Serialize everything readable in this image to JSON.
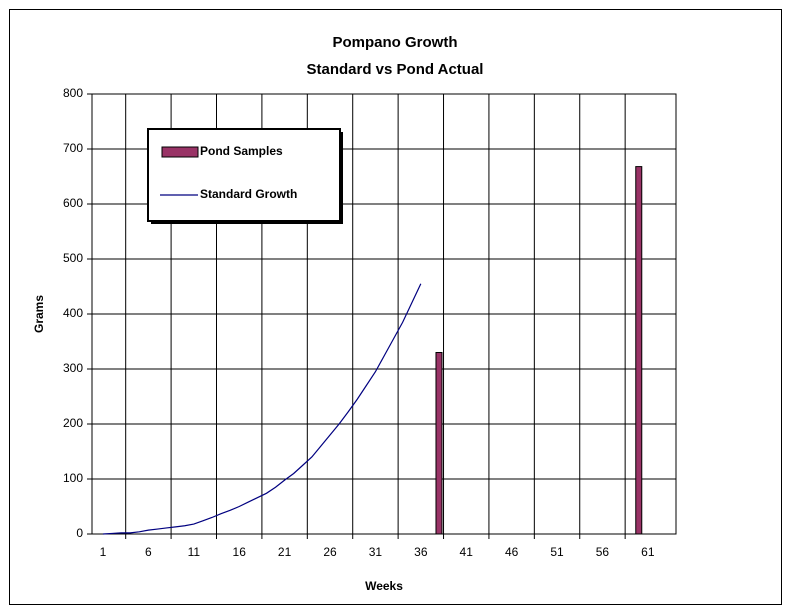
{
  "chart_data": {
    "type": "combo",
    "title": "Pompano Growth",
    "subtitle": "Standard vs Pond Actual",
    "x_label": "Weeks",
    "y_label": "Grams",
    "series": [
      {
        "name": "Pond Samples",
        "type": "bar",
        "color": "#993366",
        "x": [
          38,
          60
        ],
        "values": [
          330,
          668
        ]
      },
      {
        "name": "Standard Growth",
        "type": "line",
        "color": "#000080",
        "x": [
          1,
          2,
          3,
          4,
          5,
          6,
          7,
          8,
          9,
          10,
          11,
          12,
          13,
          14,
          15,
          16,
          17,
          18,
          19,
          20,
          21,
          22,
          23,
          24,
          25,
          26,
          27,
          28,
          29,
          30,
          31,
          32,
          33,
          34,
          35,
          36
        ],
        "values": [
          0,
          1,
          2,
          2,
          4,
          7,
          9,
          11,
          13,
          15,
          18,
          24,
          30,
          37,
          43,
          50,
          58,
          66,
          74,
          85,
          98,
          110,
          125,
          140,
          160,
          180,
          200,
          222,
          245,
          270,
          295,
          325,
          355,
          385,
          420,
          455
        ]
      }
    ],
    "xlim": [
      -0.21,
      64.1
    ],
    "xticks": [
      1,
      6,
      11,
      16,
      21,
      26,
      31,
      36,
      41,
      46,
      51,
      56,
      61
    ],
    "ylim": [
      0,
      800
    ],
    "yticks": [
      0,
      100,
      200,
      300,
      400,
      500,
      600,
      700,
      800
    ],
    "grid": true,
    "legend": "upper left"
  }
}
